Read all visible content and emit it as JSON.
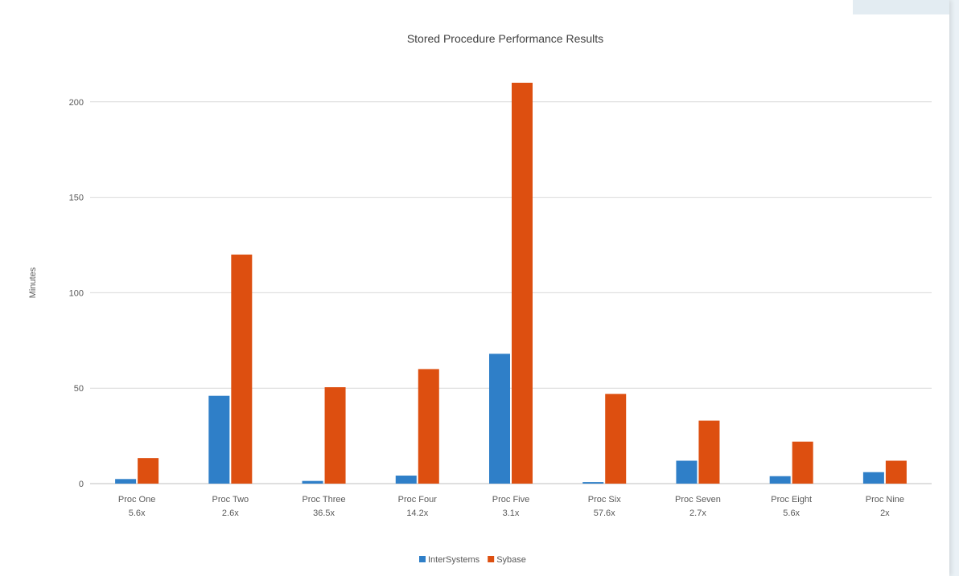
{
  "chart_data": {
    "type": "bar",
    "title": "Stored Procedure Performance Results",
    "xlabel": "",
    "ylabel": "Minutes",
    "ylim": [
      0,
      210
    ],
    "yticks": [
      0,
      50,
      100,
      150,
      200
    ],
    "grid": true,
    "legend_position": "bottom",
    "categories": [
      [
        "Proc One",
        "5.6x"
      ],
      [
        "Proc Two",
        "2.6x"
      ],
      [
        "Proc Three",
        "36.5x"
      ],
      [
        "Proc Four",
        "14.2x"
      ],
      [
        "Proc Five",
        "3.1x"
      ],
      [
        "Proc Six",
        "57.6x"
      ],
      [
        "Proc Seven",
        "2.7x"
      ],
      [
        "Proc Eight",
        "5.6x"
      ],
      [
        "Proc Nine",
        "2x"
      ]
    ],
    "series": [
      {
        "name": "InterSystems",
        "color": "#2f7fc8",
        "values": [
          2.4,
          46,
          1.4,
          4.2,
          68,
          0.8,
          12,
          3.9,
          6
        ]
      },
      {
        "name": "Sybase",
        "color": "#dd4f10",
        "values": [
          13.4,
          120,
          50.5,
          60,
          210,
          47,
          33,
          22,
          12
        ]
      }
    ]
  }
}
